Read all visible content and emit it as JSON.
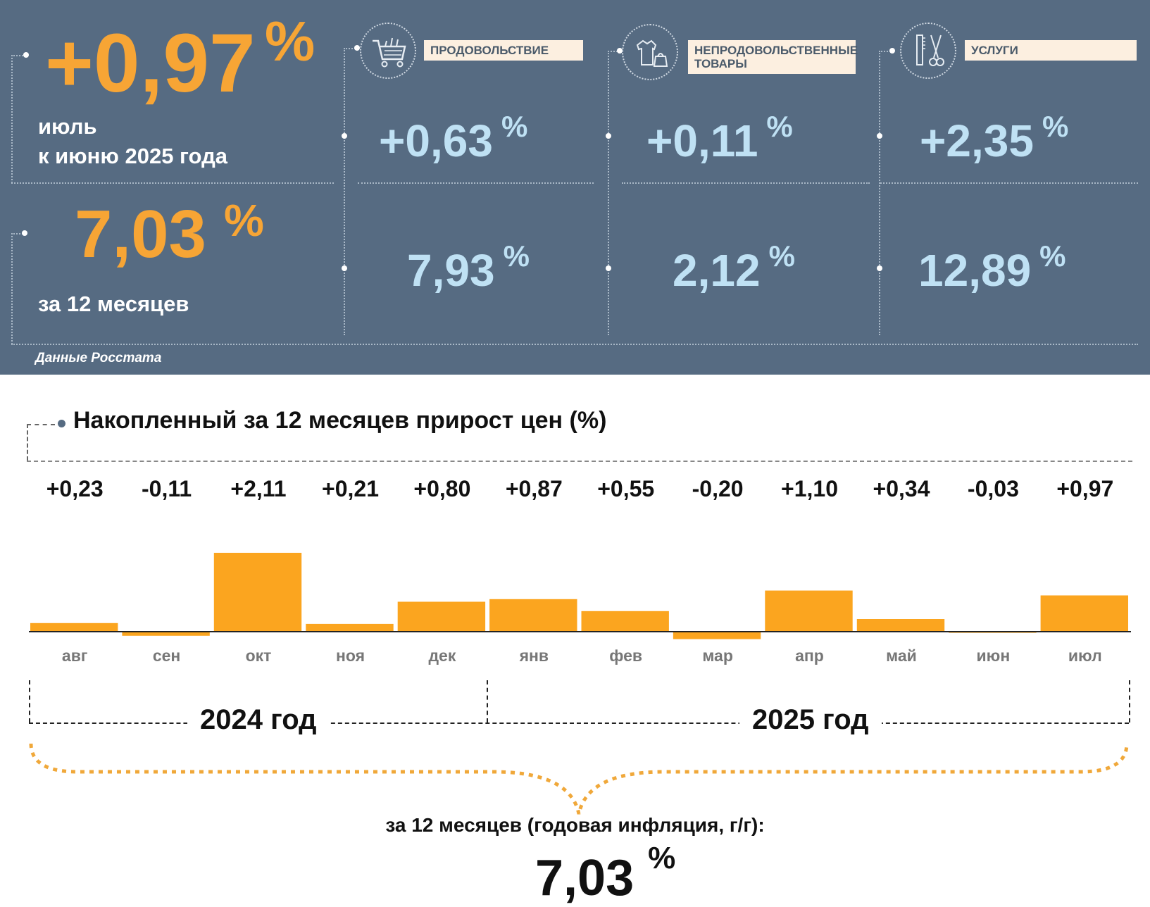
{
  "headline": {
    "month_change": "+0,97",
    "month_period_line1": "июль",
    "month_period_line2": "к июню 2025 года",
    "annual_change": "7,03",
    "annual_period": "за 12 месяцев",
    "pct_sign": "%"
  },
  "categories": [
    {
      "name": "ПРОДОВОЛЬСТВИЕ",
      "icon": "shopping-cart-icon",
      "month": "+0,63",
      "annual": "7,93"
    },
    {
      "name": "НЕПРОДОВОЛЬСТВЕННЫЕ ТОВАРЫ",
      "icon": "clothing-bag-icon",
      "month": "+0,11",
      "annual": "2,12"
    },
    {
      "name": "УСЛУГИ",
      "icon": "comb-scissors-icon",
      "month": "+2,35",
      "annual": "12,89"
    }
  ],
  "source": "Данные Росстата",
  "chart_data": {
    "type": "bar",
    "title": "Накопленный за 12 месяцев прирост цен (%)",
    "categories": [
      "авг",
      "сен",
      "окт",
      "ноя",
      "дек",
      "янв",
      "фев",
      "мар",
      "апр",
      "май",
      "июн",
      "июл"
    ],
    "values": [
      0.23,
      -0.11,
      2.11,
      0.21,
      0.8,
      0.87,
      0.55,
      -0.2,
      1.1,
      0.34,
      -0.03,
      0.97
    ],
    "value_labels": [
      "+0,23",
      "-0,11",
      "+2,11",
      "+0,21",
      "+0,80",
      "+0,87",
      "+0,55",
      "-0,20",
      "+1,10",
      "+0,34",
      "-0,03",
      "+0,97"
    ],
    "bar_color": "#fba51f",
    "years": [
      "2024 год",
      "2025 год"
    ]
  },
  "footer": {
    "label": "за 12 месяцев (годовая инфляция, г/г):",
    "value": "7,03",
    "pct_sign": "%"
  },
  "colors": {
    "panel": "#566b82",
    "accent": "#f7a535",
    "light_value": "#bfe1f4"
  }
}
